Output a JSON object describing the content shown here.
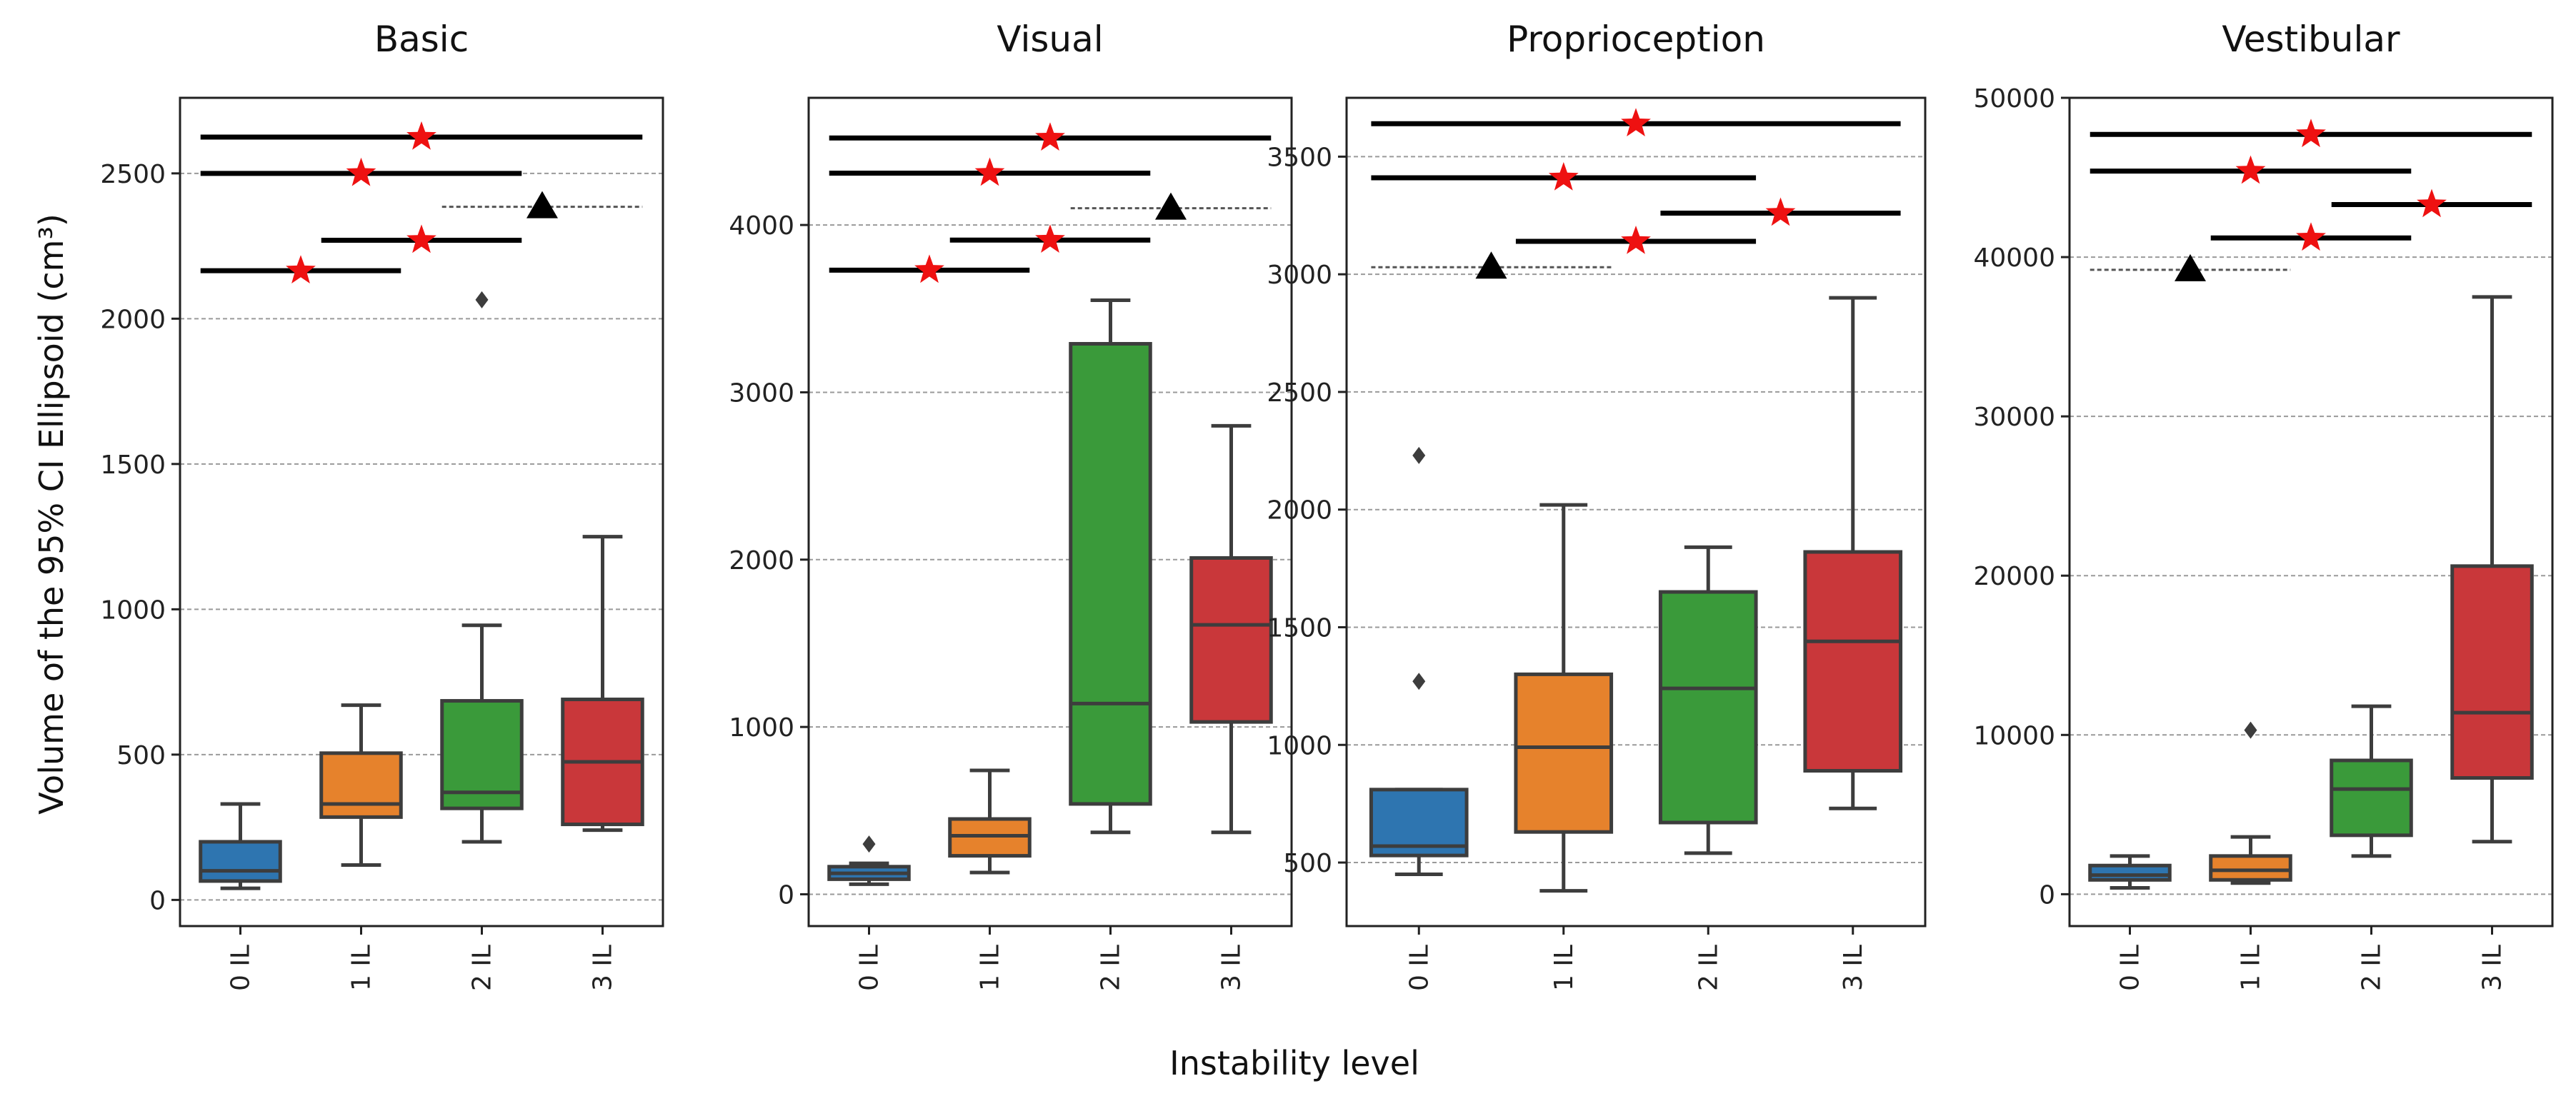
{
  "figure": {
    "xlabel": "Instability level",
    "ylabel": "Volume of the 95% CI Ellipsoid (cm³)"
  },
  "chart_data": [
    {
      "type": "box",
      "title": "Basic",
      "categories": [
        "0 IL",
        "1 IL",
        "2 IL",
        "3 IL"
      ],
      "colors": [
        "#2e75b0",
        "#e6822c",
        "#3a9a3a",
        "#c9373a"
      ],
      "ylim": [
        -90,
        2760
      ],
      "yticks": [
        0,
        500,
        1000,
        1500,
        2000,
        2500
      ],
      "ytick_labels": [
        "0",
        "500",
        "1000",
        "1500",
        "2000",
        "2500"
      ],
      "boxes": [
        {
          "whislo": 40,
          "q1": 65,
          "med": 100,
          "q3": 200,
          "whishi": 330,
          "fliers": []
        },
        {
          "whislo": 120,
          "q1": 285,
          "med": 330,
          "q3": 505,
          "whishi": 670,
          "fliers": []
        },
        {
          "whislo": 200,
          "q1": 315,
          "med": 370,
          "q3": 685,
          "whishi": 945,
          "fliers": [
            2065
          ]
        },
        {
          "whislo": 240,
          "q1": 260,
          "med": 475,
          "q3": 690,
          "whishi": 1250,
          "fliers": []
        }
      ],
      "significance": [
        {
          "from": 0,
          "to": 3,
          "y": 2625,
          "marker": "star",
          "style": "solid"
        },
        {
          "from": 0,
          "to": 2,
          "y": 2500,
          "marker": "star",
          "style": "solid"
        },
        {
          "from": 1,
          "to": 2,
          "y": 2270,
          "marker": "star",
          "style": "solid"
        },
        {
          "from": 0,
          "to": 1,
          "y": 2165,
          "marker": "star",
          "style": "solid"
        },
        {
          "from": 2,
          "to": 3,
          "y": 2385,
          "marker": "triangle",
          "style": "dashed"
        }
      ]
    },
    {
      "type": "box",
      "title": "Visual",
      "categories": [
        "0 IL",
        "1 IL",
        "2 IL",
        "3 IL"
      ],
      "colors": [
        "#2e75b0",
        "#e6822c",
        "#3a9a3a",
        "#c9373a"
      ],
      "ylim": [
        -190,
        4760
      ],
      "yticks": [
        0,
        1000,
        2000,
        3000,
        4000
      ],
      "ytick_labels": [
        "0",
        "1000",
        "2000",
        "3000",
        "4000"
      ],
      "boxes": [
        {
          "whislo": 60,
          "q1": 90,
          "med": 125,
          "q3": 165,
          "whishi": 185,
          "fliers": [
            300
          ]
        },
        {
          "whislo": 130,
          "q1": 230,
          "med": 350,
          "q3": 450,
          "whishi": 740,
          "fliers": []
        },
        {
          "whislo": 370,
          "q1": 540,
          "med": 1140,
          "q3": 3290,
          "whishi": 3550,
          "fliers": []
        },
        {
          "whislo": 370,
          "q1": 1030,
          "med": 1610,
          "q3": 2010,
          "whishi": 2800,
          "fliers": []
        }
      ],
      "significance": [
        {
          "from": 0,
          "to": 3,
          "y": 4520,
          "marker": "star",
          "style": "solid"
        },
        {
          "from": 0,
          "to": 2,
          "y": 4310,
          "marker": "star",
          "style": "solid"
        },
        {
          "from": 1,
          "to": 2,
          "y": 3910,
          "marker": "star",
          "style": "solid"
        },
        {
          "from": 0,
          "to": 1,
          "y": 3730,
          "marker": "star",
          "style": "solid"
        },
        {
          "from": 2,
          "to": 3,
          "y": 4100,
          "marker": "triangle",
          "style": "dashed"
        }
      ]
    },
    {
      "type": "box",
      "title": "Proprioception",
      "categories": [
        "0 IL",
        "1 IL",
        "2 IL",
        "3 IL"
      ],
      "colors": [
        "#2e75b0",
        "#e6822c",
        "#3a9a3a",
        "#c9373a"
      ],
      "ylim": [
        230,
        3750
      ],
      "yticks": [
        500,
        1000,
        1500,
        2000,
        2500,
        3000,
        3500
      ],
      "ytick_labels": [
        "500",
        "1000",
        "1500",
        "2000",
        "2500",
        "3000",
        "3500"
      ],
      "boxes": [
        {
          "whislo": 450,
          "q1": 530,
          "med": 570,
          "q3": 810,
          "whishi": 810,
          "fliers": [
            1270,
            2230
          ]
        },
        {
          "whislo": 380,
          "q1": 630,
          "med": 990,
          "q3": 1300,
          "whishi": 2020,
          "fliers": []
        },
        {
          "whislo": 540,
          "q1": 670,
          "med": 1240,
          "q3": 1650,
          "whishi": 1840,
          "fliers": []
        },
        {
          "whislo": 730,
          "q1": 890,
          "med": 1440,
          "q3": 1820,
          "whishi": 2900,
          "fliers": []
        }
      ],
      "significance": [
        {
          "from": 0,
          "to": 3,
          "y": 3640,
          "marker": "star",
          "style": "solid"
        },
        {
          "from": 0,
          "to": 2,
          "y": 3410,
          "marker": "star",
          "style": "solid"
        },
        {
          "from": 2,
          "to": 3,
          "y": 3260,
          "marker": "star",
          "style": "solid"
        },
        {
          "from": 1,
          "to": 2,
          "y": 3140,
          "marker": "star",
          "style": "solid"
        },
        {
          "from": 0,
          "to": 1,
          "y": 3030,
          "marker": "triangle",
          "style": "dashed"
        }
      ]
    },
    {
      "type": "box",
      "title": "Vestibular",
      "categories": [
        "0 IL",
        "1 IL",
        "2 IL",
        "3 IL"
      ],
      "colors": [
        "#2e75b0",
        "#e6822c",
        "#3a9a3a",
        "#c9373a"
      ],
      "ylim": [
        -2000,
        50000
      ],
      "yticks": [
        0,
        10000,
        20000,
        30000,
        40000,
        50000
      ],
      "ytick_labels": [
        "0",
        "10000",
        "20000",
        "30000",
        "40000",
        "50000"
      ],
      "boxes": [
        {
          "whislo": 400,
          "q1": 900,
          "med": 1200,
          "q3": 1800,
          "whishi": 2400,
          "fliers": []
        },
        {
          "whislo": 700,
          "q1": 900,
          "med": 1500,
          "q3": 2400,
          "whishi": 3600,
          "fliers": [
            10300
          ]
        },
        {
          "whislo": 2400,
          "q1": 3700,
          "med": 6600,
          "q3": 8400,
          "whishi": 11800,
          "fliers": []
        },
        {
          "whislo": 3300,
          "q1": 7300,
          "med": 11400,
          "q3": 20600,
          "whishi": 37500,
          "fliers": []
        }
      ],
      "significance": [
        {
          "from": 0,
          "to": 3,
          "y": 47700,
          "marker": "star",
          "style": "solid"
        },
        {
          "from": 0,
          "to": 2,
          "y": 45400,
          "marker": "star",
          "style": "solid"
        },
        {
          "from": 2,
          "to": 3,
          "y": 43300,
          "marker": "star",
          "style": "solid"
        },
        {
          "from": 1,
          "to": 2,
          "y": 41200,
          "marker": "star",
          "style": "solid"
        },
        {
          "from": 0,
          "to": 1,
          "y": 39200,
          "marker": "triangle",
          "style": "dashed"
        }
      ]
    }
  ]
}
